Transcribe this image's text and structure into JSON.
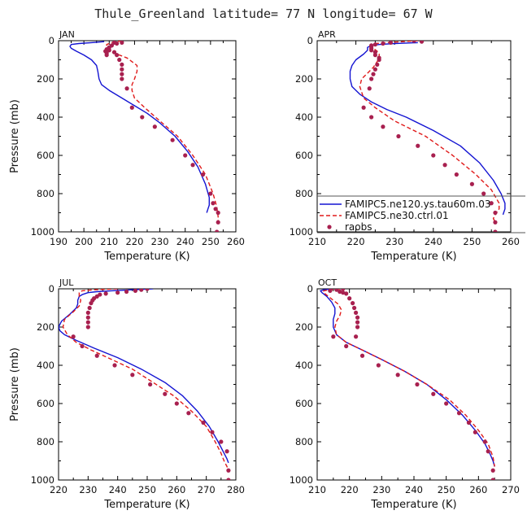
{
  "figure": {
    "title": "Thule_Greenland   latitude= 77 N longitude= 67 W"
  },
  "styles": {
    "model1_color": "#1414d2",
    "model2_color": "#e01a1a",
    "obs_color": "#a8204f"
  },
  "chart_data": [
    {
      "type": "line",
      "panel": "JAN",
      "title": "JAN",
      "xlabel": "Temperature (K)",
      "ylabel": "Pressure (mb)",
      "xlim": [
        190,
        260
      ],
      "ylim": [
        1000,
        0
      ],
      "xticks": [
        190,
        200,
        210,
        220,
        230,
        240,
        250,
        260
      ],
      "yticks": [
        0,
        200,
        400,
        600,
        800,
        1000
      ],
      "series": [
        {
          "name": "FAMIPC5.ne120.ys.tau60m.03",
          "style": "solid",
          "x": [
            208,
            203,
            198,
            195,
            194.5,
            195,
            197,
            200,
            203,
            205,
            205.5,
            206,
            207,
            210,
            215,
            220,
            225,
            230,
            236,
            241,
            245,
            248,
            249.5,
            249.5,
            249,
            248.5
          ],
          "y": [
            5,
            10,
            15,
            20,
            30,
            40,
            55,
            75,
            100,
            130,
            160,
            200,
            230,
            260,
            300,
            340,
            380,
            430,
            500,
            580,
            660,
            750,
            820,
            860,
            880,
            900
          ]
        },
        {
          "name": "FAMIPC5.ne30.ctrl.01",
          "style": "dashed",
          "x": [
            215,
            213,
            211,
            210,
            209,
            209,
            209.5,
            211,
            213,
            215,
            217,
            219,
            221,
            221,
            220,
            219,
            219,
            220,
            224,
            230,
            237,
            243,
            248,
            251,
            252.5,
            253,
            253
          ],
          "y": [
            0,
            5,
            10,
            15,
            20,
            30,
            45,
            60,
            70,
            80,
            90,
            110,
            130,
            160,
            200,
            230,
            260,
            300,
            350,
            420,
            500,
            600,
            700,
            800,
            870,
            920,
            950
          ]
        },
        {
          "name": "raobs",
          "style": "markers",
          "x": [
            212,
            213,
            215,
            211,
            210,
            209,
            208.5,
            209,
            209,
            210,
            212,
            213,
            214,
            215,
            215,
            215,
            215,
            217,
            219,
            223,
            228,
            235,
            240,
            243,
            247,
            250,
            251,
            252,
            253,
            253,
            252.5
          ],
          "y": [
            10,
            15,
            10,
            25,
            35,
            45,
            55,
            65,
            75,
            50,
            60,
            75,
            100,
            125,
            150,
            175,
            200,
            250,
            350,
            400,
            450,
            520,
            600,
            650,
            700,
            800,
            850,
            880,
            900,
            950,
            1000
          ]
        }
      ]
    },
    {
      "type": "line",
      "panel": "APR",
      "title": "APR",
      "xlabel": "Temperature (K)",
      "ylabel": "",
      "xlim": [
        210,
        260
      ],
      "ylim": [
        1000,
        0
      ],
      "xticks": [
        210,
        220,
        230,
        240,
        250,
        260
      ],
      "yticks": [
        0,
        200,
        400,
        600,
        800,
        1000
      ],
      "legend": {
        "placement": "bottom",
        "entries": [
          {
            "label": "FAMIPC5.ne120.ys.tau60m.03",
            "series": 0
          },
          {
            "label": "FAMIPC5.ne30.ctrl.01",
            "series": 1
          },
          {
            "label": "raobs",
            "series": 2
          }
        ]
      },
      "series": [
        {
          "name": "FAMIPC5.ne120.ys.tau60m.03",
          "style": "solid",
          "x": [
            236,
            230,
            226,
            224,
            223,
            223,
            222,
            220,
            219,
            218.5,
            218.5,
            219,
            221,
            224,
            228,
            233,
            240,
            247,
            252,
            255.5,
            257.5,
            258.5,
            258.5,
            258
          ],
          "y": [
            10,
            15,
            20,
            25,
            35,
            50,
            70,
            100,
            130,
            160,
            200,
            240,
            280,
            320,
            360,
            400,
            470,
            550,
            640,
            730,
            800,
            850,
            880,
            910
          ]
        },
        {
          "name": "FAMIPC5.ne30.ctrl.01",
          "style": "dashed",
          "x": [
            236,
            232,
            228,
            225,
            224,
            224.5,
            225.5,
            226,
            226,
            225.5,
            224.5,
            223,
            221.5,
            221,
            222,
            225,
            230,
            238,
            245,
            251,
            255,
            257,
            257,
            256,
            255.5,
            256
          ],
          "y": [
            0,
            5,
            10,
            15,
            25,
            40,
            55,
            70,
            90,
            110,
            140,
            170,
            200,
            240,
            300,
            350,
            420,
            500,
            600,
            700,
            780,
            850,
            880,
            910,
            930,
            950
          ]
        },
        {
          "name": "raobs",
          "style": "markers",
          "x": [
            235,
            237,
            229,
            227,
            225,
            224,
            224,
            224,
            224,
            225,
            225,
            226,
            226,
            225.5,
            225,
            224.5,
            224,
            223.5,
            222,
            224,
            227,
            231,
            236,
            240,
            243,
            246,
            250,
            253,
            255,
            256,
            256,
            256
          ],
          "y": [
            0,
            5,
            10,
            15,
            20,
            25,
            30,
            40,
            50,
            60,
            75,
            90,
            100,
            125,
            150,
            175,
            200,
            250,
            350,
            400,
            450,
            500,
            550,
            600,
            650,
            700,
            750,
            800,
            850,
            900,
            950,
            1000
          ]
        }
      ]
    },
    {
      "type": "line",
      "panel": "JUL",
      "title": "JUL",
      "xlabel": "Temperature (K)",
      "ylabel": "Pressure (mb)",
      "xlim": [
        220,
        280
      ],
      "ylim": [
        1000,
        0
      ],
      "xticks": [
        220,
        230,
        240,
        250,
        260,
        270,
        280
      ],
      "yticks": [
        0,
        200,
        400,
        600,
        800,
        1000
      ],
      "series": [
        {
          "name": "FAMIPC5.ne120.ys.tau60m.03",
          "style": "solid",
          "x": [
            252,
            245,
            238,
            233,
            230,
            228,
            227,
            226.5,
            226.5,
            226,
            224,
            221,
            220,
            220.5,
            222,
            226,
            232,
            240,
            248,
            256,
            262,
            267,
            271,
            274,
            276,
            277,
            277.5
          ],
          "y": [
            0,
            5,
            10,
            15,
            20,
            30,
            40,
            60,
            80,
            100,
            130,
            170,
            200,
            220,
            240,
            270,
            310,
            360,
            420,
            490,
            560,
            640,
            720,
            800,
            860,
            890,
            910
          ]
        },
        {
          "name": "FAMIPC5.ne30.ctrl.01",
          "style": "dashed",
          "x": [
            240,
            232,
            228,
            227,
            227,
            227.5,
            227,
            225,
            222,
            221.5,
            223,
            226,
            231,
            238,
            245,
            252,
            259,
            265,
            270,
            273,
            275,
            276,
            277,
            277.5
          ],
          "y": [
            0,
            5,
            10,
            20,
            40,
            60,
            90,
            120,
            160,
            200,
            240,
            280,
            320,
            370,
            420,
            490,
            560,
            640,
            720,
            800,
            860,
            900,
            930,
            950
          ]
        },
        {
          "name": "raobs",
          "style": "markers",
          "x": [
            250,
            248,
            246,
            243,
            240,
            236,
            234,
            233,
            232,
            231.5,
            231,
            230.5,
            230,
            230,
            230,
            230,
            225,
            228,
            233,
            239,
            245,
            251,
            256,
            260,
            264,
            269,
            272,
            275,
            277,
            277.5,
            277.5
          ],
          "y": [
            0,
            5,
            10,
            15,
            20,
            25,
            30,
            40,
            50,
            60,
            75,
            100,
            125,
            150,
            175,
            200,
            250,
            300,
            350,
            400,
            450,
            500,
            550,
            600,
            650,
            700,
            750,
            800,
            850,
            950,
            1000
          ]
        }
      ]
    },
    {
      "type": "line",
      "panel": "OCT",
      "title": "OCT",
      "xlabel": "Temperature (K)",
      "ylabel": "",
      "xlim": [
        210,
        270
      ],
      "ylim": [
        1000,
        0
      ],
      "xticks": [
        210,
        220,
        230,
        240,
        250,
        260,
        270
      ],
      "yticks": [
        0,
        200,
        400,
        600,
        800,
        1000
      ],
      "series": [
        {
          "name": "FAMIPC5.ne120.ys.tau60m.03",
          "style": "solid",
          "x": [
            215,
            212,
            211,
            211.5,
            213,
            214.5,
            215.5,
            215.5,
            215,
            215,
            216,
            219,
            224,
            230,
            237,
            244,
            250,
            255,
            259,
            262,
            263.5,
            264.5,
            265
          ],
          "y": [
            0,
            5,
            10,
            20,
            40,
            70,
            100,
            130,
            160,
            200,
            240,
            280,
            320,
            370,
            430,
            500,
            580,
            660,
            740,
            810,
            860,
            900,
            930
          ]
        },
        {
          "name": "FAMIPC5.ne30.ctrl.01",
          "style": "dashed",
          "x": [
            217,
            214,
            212,
            212,
            213.5,
            215,
            216.5,
            217.5,
            217,
            216,
            215.5,
            216,
            219,
            224,
            230,
            237,
            244,
            251,
            256,
            260,
            263,
            264.5,
            265
          ],
          "y": [
            0,
            5,
            10,
            20,
            40,
            60,
            80,
            110,
            140,
            170,
            200,
            240,
            280,
            320,
            370,
            430,
            500,
            580,
            660,
            740,
            810,
            880,
            930
          ]
        },
        {
          "name": "raobs",
          "style": "markers",
          "x": [
            218,
            216,
            214,
            217,
            218,
            219,
            220,
            221,
            221.5,
            222,
            222.5,
            222.5,
            222.5,
            222,
            215,
            219,
            224,
            229,
            235,
            241,
            246,
            250,
            254,
            257,
            259,
            262,
            263,
            264.5,
            264.5
          ],
          "y": [
            0,
            5,
            10,
            15,
            20,
            25,
            50,
            75,
            100,
            125,
            150,
            175,
            200,
            250,
            250,
            300,
            350,
            400,
            450,
            500,
            550,
            600,
            650,
            700,
            750,
            800,
            850,
            950,
            1000
          ]
        }
      ]
    }
  ]
}
